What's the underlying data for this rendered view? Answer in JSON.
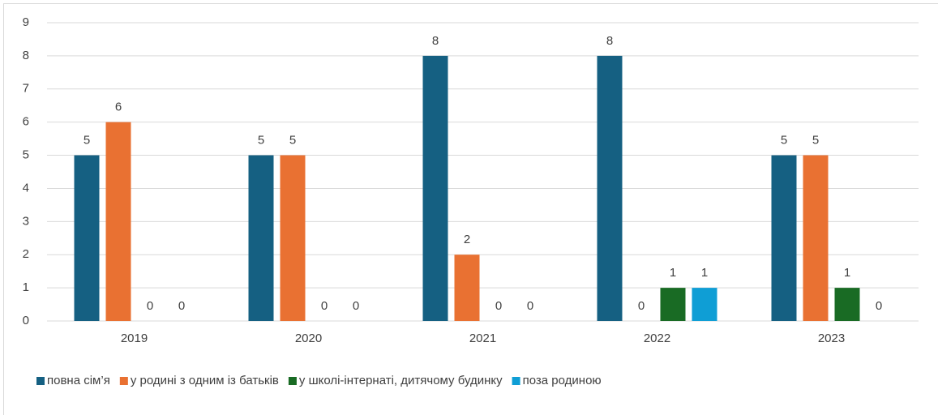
{
  "chart_data": {
    "type": "bar",
    "categories": [
      "2019",
      "2020",
      "2021",
      "2022",
      "2023"
    ],
    "series": [
      {
        "name": "повна сім’я",
        "color": "#156082",
        "values": [
          5,
          5,
          8,
          8,
          5
        ]
      },
      {
        "name": "у родині з одним із батьків",
        "color": "#e97132",
        "values": [
          6,
          5,
          2,
          0,
          5
        ]
      },
      {
        "name": "у школі-інтернаті, дитячому будинку",
        "color": "#196b24",
        "values": [
          0,
          0,
          0,
          1,
          1
        ]
      },
      {
        "name": "поза родиною",
        "color": "#0f9ed5",
        "values": [
          0,
          0,
          0,
          1,
          0
        ]
      }
    ],
    "ylim": [
      0,
      9
    ],
    "yticks": [
      0,
      1,
      2,
      3,
      4,
      5,
      6,
      7,
      8,
      9
    ],
    "grid": true,
    "legend": "bottom"
  }
}
